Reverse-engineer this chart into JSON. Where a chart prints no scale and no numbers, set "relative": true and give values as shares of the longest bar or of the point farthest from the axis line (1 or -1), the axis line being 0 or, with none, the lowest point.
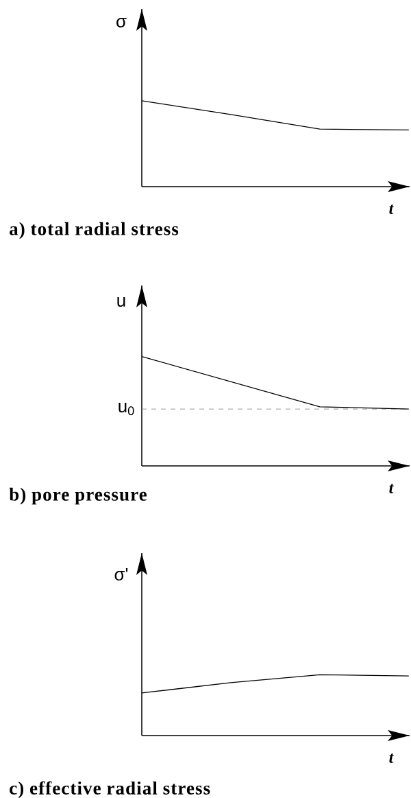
{
  "chart_data": [
    {
      "type": "line",
      "title": "a) total radial stress",
      "xlabel": "t",
      "ylabel": "σ",
      "relative": true,
      "categories": [
        null,
        null,
        null,
        null
      ],
      "series": [
        {
          "color": "#000000",
          "values": [
            1,
            0.84,
            0.67,
            0.66
          ]
        }
      ]
    },
    {
      "type": "line",
      "title": "b) pore pressure",
      "xlabel": "t",
      "ylabel": "u",
      "relative": true,
      "categories": [
        null,
        null,
        null,
        null
      ],
      "series": [
        {
          "color": "#000000",
          "values": [
            1,
            0.77,
            0.54,
            0.52
          ]
        }
      ],
      "ref_lines": [
        {
          "axis": "y",
          "value": 0.52,
          "label": "u$_{0}$",
          "line_style": "dashed",
          "color": "#999999"
        }
      ]
    },
    {
      "type": "line",
      "title": "c) effective radial stress",
      "xlabel": "t",
      "ylabel": "σ'",
      "relative": true,
      "categories": [
        null,
        null,
        null,
        null
      ],
      "series": [
        {
          "color": "#000000",
          "values": [
            0.7,
            0.87,
            1,
            0.98
          ]
        }
      ]
    }
  ]
}
